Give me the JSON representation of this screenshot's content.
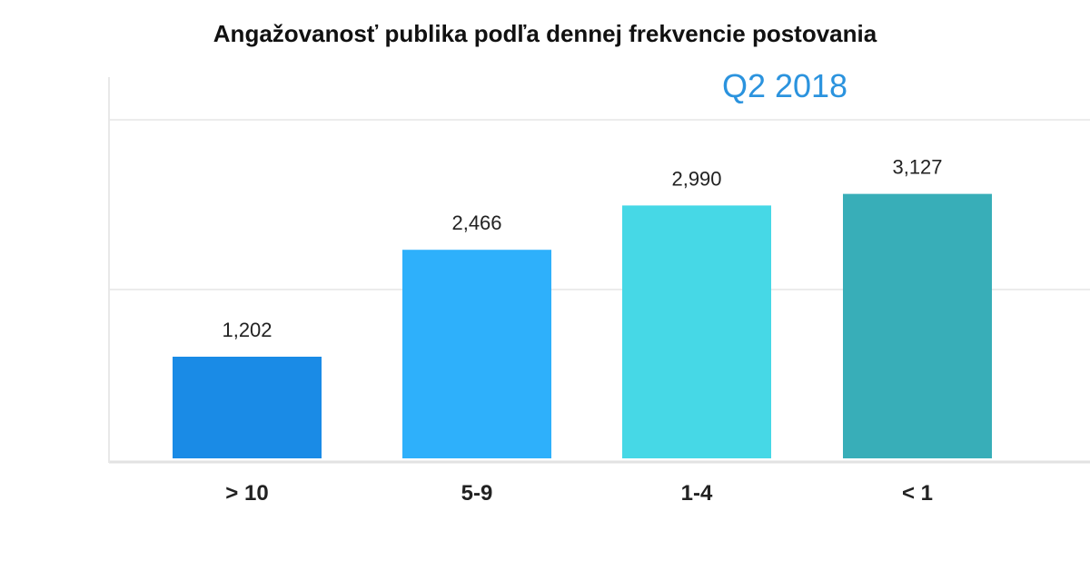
{
  "chart_data": {
    "type": "bar",
    "title": "Angažovanosť publika podľa dennej frekvencie postovania",
    "subtitle": "Q2 2018",
    "categories": [
      "> 10",
      "5-9",
      "1-4",
      "< 1"
    ],
    "values": [
      1202,
      2466,
      2990,
      3127
    ],
    "value_labels": [
      "1,202",
      "2,466",
      "2,990",
      "3,127"
    ],
    "bar_colors": [
      "#1a8be6",
      "#2eb0fb",
      "#46d8e6",
      "#38aeb8"
    ],
    "subtitle_color": "#2b93de",
    "ylim": [
      0,
      4400
    ],
    "gridlines": [
      0,
      2000,
      4000
    ],
    "grid": true,
    "legend": "none",
    "xlabel": "",
    "ylabel": ""
  }
}
